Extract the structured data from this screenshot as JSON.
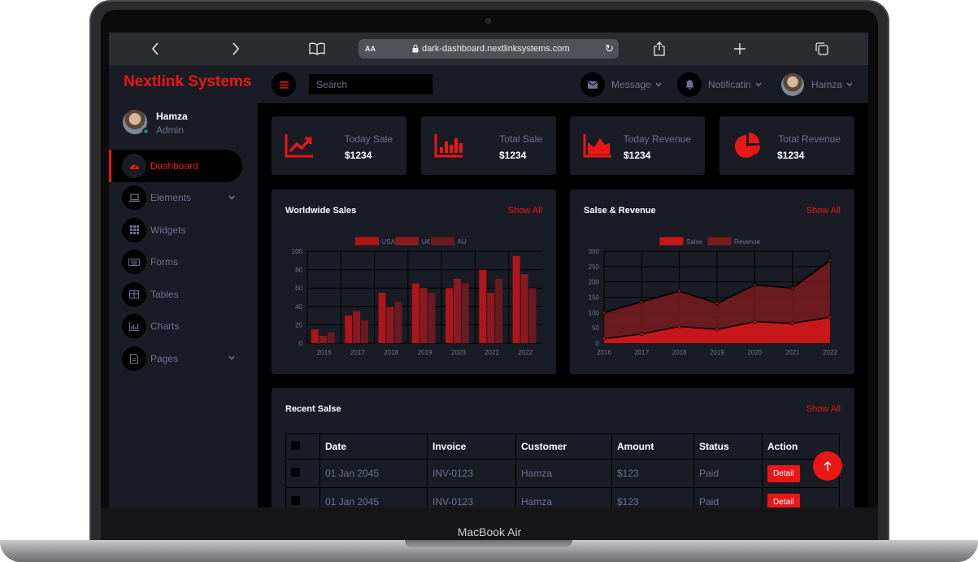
{
  "device": {
    "model": "MacBook Air"
  },
  "browser": {
    "aa_label": "AA",
    "url": "dark-dashboard.nextlinksystems.com",
    "icons": [
      "chevron-left-icon",
      "chevron-right-icon",
      "bookmarks-icon",
      "lock-icon",
      "reload-icon",
      "share-icon",
      "plus-icon",
      "tabs-icon"
    ]
  },
  "brand": {
    "name": "Nextlink Systems",
    "color": "#eb1616"
  },
  "sidebar": {
    "user": {
      "name": "Hamza",
      "role": "Admin"
    },
    "items": [
      {
        "label": "Dashboard",
        "icon": "speedometer-icon",
        "active": true
      },
      {
        "label": "Elements",
        "icon": "laptop-icon",
        "has_submenu": true
      },
      {
        "label": "Widgets",
        "icon": "grid-icon"
      },
      {
        "label": "Forms",
        "icon": "keyboard-icon"
      },
      {
        "label": "Tables",
        "icon": "table-icon"
      },
      {
        "label": "Charts",
        "icon": "chart-icon"
      },
      {
        "label": "Pages",
        "icon": "file-icon",
        "has_submenu": true
      }
    ]
  },
  "topbar": {
    "search_placeholder": "Search",
    "message_label": "Message",
    "notification_label": "Notificatin",
    "user_name": "Hamza"
  },
  "stats": [
    {
      "title": "Today Sale",
      "value": "$1234",
      "icon": "line-chart-icon"
    },
    {
      "title": "Total Sale",
      "value": "$1234",
      "icon": "bar-chart-icon"
    },
    {
      "title": "Today Revenue",
      "value": "$1234",
      "icon": "area-chart-icon"
    },
    {
      "title": "Total Revenue",
      "value": "$1234",
      "icon": "pie-chart-icon"
    }
  ],
  "worldwide_panel": {
    "title": "Worldwide Sales",
    "link": "Show All"
  },
  "revenue_panel": {
    "title": "Salse & Revenue",
    "link": "Show All"
  },
  "chart_data": [
    {
      "type": "bar",
      "title": "Worldwide Sales",
      "categories": [
        "2016",
        "2017",
        "2018",
        "2019",
        "2020",
        "2021",
        "2022"
      ],
      "series": [
        {
          "name": "USA",
          "values": [
            15,
            30,
            55,
            65,
            60,
            80,
            95
          ],
          "color": "#b0151a"
        },
        {
          "name": "UK",
          "values": [
            8,
            35,
            40,
            60,
            70,
            55,
            75
          ],
          "color": "#8a1a20"
        },
        {
          "name": "AU",
          "values": [
            12,
            25,
            45,
            55,
            65,
            70,
            60
          ],
          "color": "#6a1a20"
        }
      ],
      "ylim": [
        0,
        100
      ],
      "yticks": [
        0,
        20,
        40,
        60,
        80,
        100
      ],
      "legend": "top-center",
      "grid": true
    },
    {
      "type": "area",
      "title": "Salse & Revenue",
      "categories": [
        "2016",
        "2017",
        "2018",
        "2019",
        "2020",
        "2021",
        "2022"
      ],
      "series": [
        {
          "name": "Salse",
          "values": [
            15,
            30,
            55,
            45,
            70,
            65,
            85
          ],
          "color": "#c8171b"
        },
        {
          "name": "Revenue",
          "values": [
            100,
            135,
            170,
            130,
            190,
            180,
            270
          ],
          "color": "#7a1a1f"
        }
      ],
      "ylim": [
        0,
        300
      ],
      "yticks": [
        0,
        50,
        100,
        150,
        200,
        250,
        300
      ],
      "legend": "top-center",
      "grid": true
    }
  ],
  "recent_sales": {
    "title": "Recent Salse",
    "link": "Show All",
    "headers": [
      "Date",
      "Invoice",
      "Customer",
      "Amount",
      "Status",
      "Action"
    ],
    "rows": [
      {
        "date": "01 Jan 2045",
        "invoice": "INV-0123",
        "customer": "Hamza",
        "amount": "$123",
        "status": "Paid",
        "action": "Detail"
      },
      {
        "date": "01 Jan 2045",
        "invoice": "INV-0123",
        "customer": "Hamza",
        "amount": "$123",
        "status": "Paid",
        "action": "Detail"
      }
    ]
  },
  "back_to_top_icon": "arrow-up-icon"
}
